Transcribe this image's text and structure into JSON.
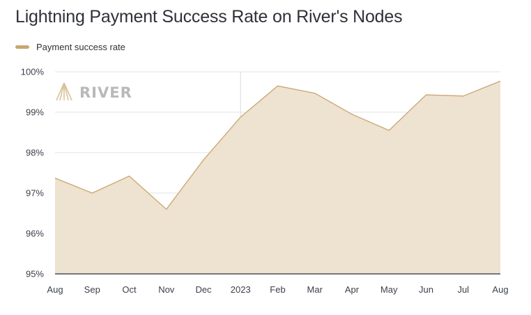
{
  "chart_data": {
    "type": "area",
    "title": "Lightning Payment Success Rate on River's Nodes",
    "xlabel": "",
    "ylabel": "",
    "categories": [
      "Aug",
      "Sep",
      "Oct",
      "Nov",
      "Dec",
      "2023",
      "Feb",
      "Mar",
      "Apr",
      "May",
      "Jun",
      "Jul",
      "Aug"
    ],
    "series": [
      {
        "name": "Payment success rate",
        "values": [
          97.37,
          97.0,
          97.42,
          96.6,
          97.82,
          98.88,
          99.65,
          99.47,
          98.95,
          98.55,
          99.43,
          99.4,
          99.77
        ],
        "color": "#c9a66f",
        "fill": "#eee2d0"
      }
    ],
    "ylim": [
      95,
      100
    ],
    "yticks": [
      95,
      96,
      97,
      98,
      99,
      100
    ],
    "ytick_labels": [
      "95%",
      "96%",
      "97%",
      "98%",
      "99%",
      "100%"
    ],
    "grid": true,
    "legend_position": "top-left",
    "year_marker_index": 5
  },
  "logo": {
    "text": "RIVER",
    "color": "#b9b9b9"
  }
}
